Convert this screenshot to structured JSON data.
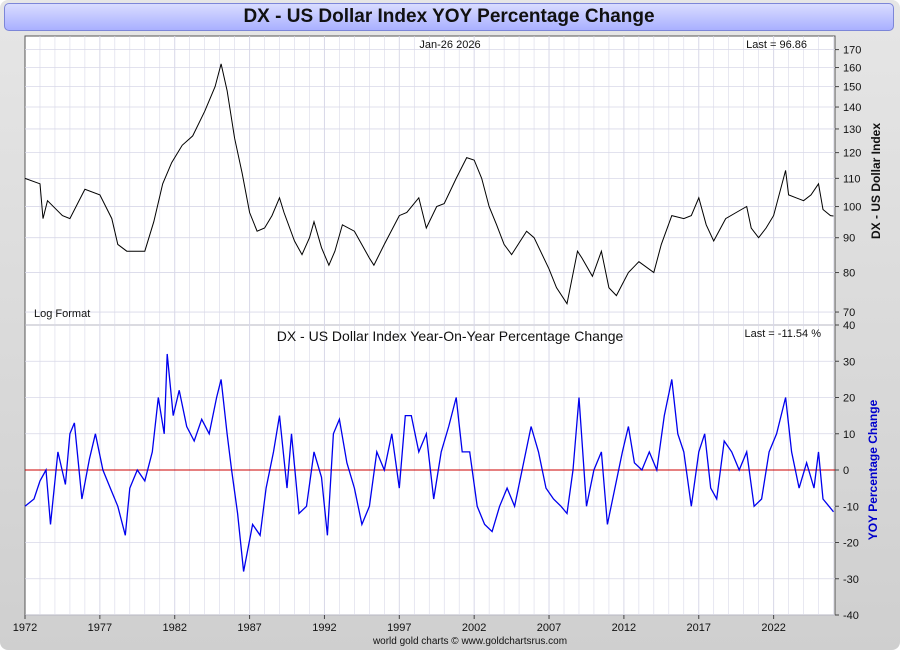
{
  "page_title": "DX  -  US Dollar Index YOY Percentage Change",
  "footer_credit": "world gold charts © www.goldchartsrus.com",
  "colors": {
    "price_line": "#000000",
    "yoy_line": "#0000ee",
    "zero_line": "#cc0000",
    "grid": "#d8d8e8",
    "yoy_axis_label": "#0000cc"
  },
  "chart_data": [
    {
      "type": "line",
      "title": "DX  -  US Dollar Index",
      "date_label": "Jan-26  2026",
      "last_label": "Last = 96.86",
      "note": "Log Format",
      "ylabel": "DX  -  US Dollar Index",
      "yscale": "log",
      "ylim": [
        67,
        178
      ],
      "yticks": [
        70,
        80,
        90,
        100,
        110,
        120,
        130,
        140,
        150,
        160,
        170
      ],
      "xlim": [
        1972,
        2026.1
      ],
      "xticks": [
        1972,
        1977,
        1982,
        1987,
        1992,
        1997,
        2002,
        2007,
        2012,
        2017,
        2022
      ],
      "series": [
        {
          "name": "US Dollar Index",
          "x": [
            1972.0,
            1973.0,
            1973.2,
            1973.5,
            1974.5,
            1975.0,
            1976.0,
            1977.0,
            1977.8,
            1978.2,
            1978.8,
            1979.3,
            1980.0,
            1980.6,
            1981.2,
            1981.8,
            1982.5,
            1983.2,
            1984.0,
            1984.7,
            1985.1,
            1985.5,
            1986.0,
            1986.5,
            1987.0,
            1987.5,
            1988.0,
            1988.5,
            1989.0,
            1989.3,
            1990.0,
            1990.5,
            1991.0,
            1991.3,
            1991.8,
            1992.3,
            1992.7,
            1993.2,
            1994.0,
            1995.0,
            1995.3,
            1996.0,
            1997.0,
            1997.5,
            1998.3,
            1998.8,
            1999.5,
            2000.0,
            2000.8,
            2001.5,
            2002.0,
            2002.5,
            2003.0,
            2003.5,
            2004.0,
            2004.5,
            2005.5,
            2006.0,
            2007.0,
            2007.5,
            2008.2,
            2008.9,
            2009.2,
            2009.9,
            2010.5,
            2011.0,
            2011.5,
            2012.3,
            2013.0,
            2014.0,
            2014.5,
            2015.2,
            2016.0,
            2016.5,
            2017.0,
            2017.5,
            2018.0,
            2018.8,
            2019.5,
            2020.2,
            2020.5,
            2021.0,
            2021.5,
            2022.0,
            2022.8,
            2023.0,
            2023.5,
            2024.0,
            2024.5,
            2025.0,
            2025.3,
            2025.8,
            2026.0
          ],
          "values": [
            110,
            108,
            96,
            102,
            97,
            96,
            106,
            104,
            96,
            88,
            86,
            86,
            86,
            95,
            108,
            116,
            123,
            127,
            138,
            150,
            162,
            148,
            126,
            112,
            98,
            92,
            93,
            97,
            103,
            98,
            89,
            85,
            90,
            95,
            87,
            82,
            86,
            94,
            92,
            84,
            82,
            88,
            97,
            98,
            103,
            93,
            100,
            101,
            110,
            118,
            117,
            110,
            100,
            94,
            88,
            85,
            92,
            90,
            81,
            76,
            72,
            86,
            84,
            79,
            86,
            76,
            74,
            80,
            83,
            80,
            88,
            97,
            96,
            97,
            103,
            94,
            89,
            96,
            98,
            100,
            93,
            90,
            93,
            97,
            113,
            104,
            103,
            102,
            104,
            108,
            99,
            97,
            96.86
          ]
        }
      ]
    },
    {
      "type": "line",
      "title": "DX  -  US Dollar Index Year-On-Year Percentage Change",
      "last_label": "Last = -11.54 %",
      "ylabel": "YOY Percentage Change",
      "ylim": [
        -40,
        40
      ],
      "yticks": [
        -40,
        -30,
        -20,
        -10,
        0,
        10,
        20,
        30,
        40
      ],
      "xlim": [
        1972,
        2026.1
      ],
      "xticks": [
        1972,
        1977,
        1982,
        1987,
        1992,
        1997,
        2002,
        2007,
        2012,
        2017,
        2022
      ],
      "reference_line": 0,
      "series": [
        {
          "name": "YOY % Change",
          "x": [
            1972.0,
            1972.6,
            1973.0,
            1973.4,
            1973.7,
            1974.2,
            1974.7,
            1975.0,
            1975.3,
            1975.8,
            1976.3,
            1976.7,
            1977.2,
            1977.7,
            1978.2,
            1978.7,
            1979.0,
            1979.5,
            1980.0,
            1980.5,
            1980.9,
            1981.3,
            1981.5,
            1981.9,
            1982.3,
            1982.8,
            1983.3,
            1983.8,
            1984.3,
            1984.8,
            1985.1,
            1985.5,
            1985.8,
            1986.2,
            1986.6,
            1987.2,
            1987.7,
            1988.1,
            1988.6,
            1989.0,
            1989.5,
            1989.8,
            1990.3,
            1990.8,
            1991.3,
            1991.8,
            1992.2,
            1992.6,
            1993.0,
            1993.5,
            1994.0,
            1994.5,
            1995.0,
            1995.5,
            1996.0,
            1996.5,
            1997.0,
            1997.4,
            1997.8,
            1998.3,
            1998.8,
            1999.3,
            1999.8,
            2000.3,
            2000.8,
            2001.2,
            2001.7,
            2002.2,
            2002.7,
            2003.2,
            2003.7,
            2004.2,
            2004.7,
            2005.2,
            2005.8,
            2006.3,
            2006.8,
            2007.3,
            2007.8,
            2008.2,
            2008.6,
            2009.0,
            2009.5,
            2010.0,
            2010.5,
            2010.9,
            2011.4,
            2011.9,
            2012.3,
            2012.7,
            2013.2,
            2013.7,
            2014.2,
            2014.7,
            2015.2,
            2015.6,
            2016.0,
            2016.5,
            2017.0,
            2017.4,
            2017.8,
            2018.2,
            2018.7,
            2019.2,
            2019.7,
            2020.2,
            2020.7,
            2021.2,
            2021.7,
            2022.2,
            2022.8,
            2023.2,
            2023.7,
            2024.2,
            2024.7,
            2025.0,
            2025.3,
            2025.7,
            2026.0
          ],
          "values": [
            -10,
            -8,
            -3,
            0,
            -15,
            5,
            -4,
            10,
            13,
            -8,
            3,
            10,
            0,
            -5,
            -10,
            -18,
            -5,
            0,
            -3,
            5,
            20,
            10,
            32,
            15,
            22,
            12,
            8,
            14,
            10,
            20,
            25,
            10,
            0,
            -12,
            -28,
            -15,
            -18,
            -5,
            5,
            15,
            -5,
            10,
            -12,
            -10,
            5,
            -2,
            -18,
            10,
            14,
            2,
            -5,
            -15,
            -10,
            5,
            0,
            10,
            -5,
            15,
            15,
            5,
            10,
            -8,
            5,
            12,
            20,
            5,
            5,
            -10,
            -15,
            -17,
            -10,
            -5,
            -10,
            0,
            12,
            5,
            -5,
            -8,
            -10,
            -12,
            0,
            20,
            -10,
            0,
            5,
            -15,
            -5,
            5,
            12,
            2,
            0,
            5,
            0,
            15,
            25,
            10,
            5,
            -10,
            5,
            10,
            -5,
            -8,
            8,
            5,
            0,
            5,
            -10,
            -8,
            5,
            10,
            20,
            5,
            -5,
            2,
            -5,
            5,
            -8,
            -10,
            -11.54
          ]
        }
      ]
    }
  ]
}
